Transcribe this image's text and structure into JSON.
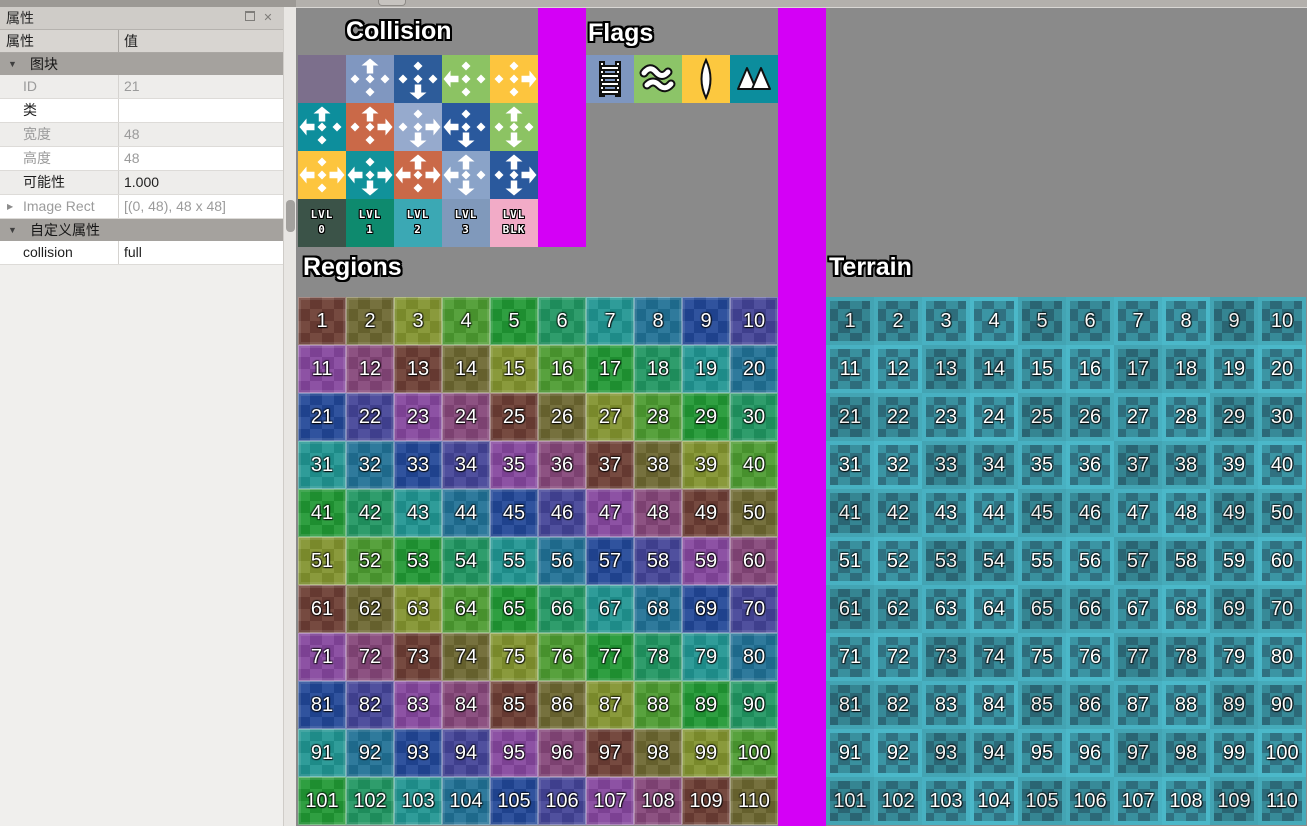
{
  "properties_panel": {
    "title": "属性",
    "window_buttons": {
      "float": "float",
      "close": "close"
    },
    "header": {
      "name": "属性",
      "value": "值"
    },
    "rows": [
      {
        "type": "group",
        "label": "图块"
      },
      {
        "type": "property",
        "label": "ID",
        "value": "21",
        "muted": true,
        "shade": true
      },
      {
        "type": "property",
        "label": "类",
        "value": "",
        "muted": false,
        "shade": false
      },
      {
        "type": "property",
        "label": "宽度",
        "value": "48",
        "muted": true,
        "shade": true
      },
      {
        "type": "property",
        "label": "高度",
        "value": "48",
        "muted": true,
        "shade": false
      },
      {
        "type": "property",
        "label": "可能性",
        "value": "1.000",
        "muted": false,
        "shade": true
      },
      {
        "type": "property",
        "label": "Image Rect",
        "value": "[(0, 48), 48 x 48]",
        "muted": true,
        "shade": false,
        "expander": true
      },
      {
        "type": "group",
        "label": "自定义属性"
      },
      {
        "type": "property",
        "label": "collision",
        "value": "full",
        "muted": false,
        "shade": false
      }
    ]
  },
  "tileset": {
    "background_color": "#8a8a8a",
    "transparent_color": "#d400f6",
    "sections": {
      "collision": {
        "label": "Collision",
        "tiles": [
          {
            "color": "#7c6f8c",
            "icons": null
          },
          {
            "color": "#8097c0",
            "icons": {
              "top": "arrow",
              "left": "dot",
              "center": "dot",
              "right": "dot",
              "bottom": "dot"
            }
          },
          {
            "color": "#2d5c9a",
            "icons": {
              "top": "dot",
              "left": "dot",
              "center": "dot",
              "right": "dot",
              "bottom": "arrow"
            }
          },
          {
            "color": "#8cc363",
            "icons": {
              "top": "dot",
              "left": "arrow",
              "center": "dot",
              "right": "dot",
              "bottom": "dot"
            }
          },
          {
            "color": "#fdc53e",
            "icons": {
              "top": "dot",
              "left": "dot",
              "center": "dot",
              "right": "arrow",
              "bottom": "dot"
            }
          },
          {
            "color": "#0d8e9c",
            "icons": {
              "top": "arrow",
              "left": "arrow",
              "center": "dot",
              "right": "dot",
              "bottom": "dot"
            }
          },
          {
            "color": "#ca6948",
            "icons": {
              "top": "arrow",
              "left": "dot",
              "center": "dot",
              "right": "arrow",
              "bottom": "dot"
            }
          },
          {
            "color": "#96aacd",
            "icons": {
              "top": "dot",
              "left": "dot",
              "center": "dot",
              "right": "arrow",
              "bottom": "arrow"
            }
          },
          {
            "color": "#2a599d",
            "icons": {
              "top": "dot",
              "left": "arrow",
              "center": "dot",
              "right": "dot",
              "bottom": "arrow"
            }
          },
          {
            "color": "#8cc363",
            "icons": {
              "top": "arrow",
              "left": "dot",
              "center": "dot",
              "right": "dot",
              "bottom": "arrow"
            }
          },
          {
            "color": "#fdc53e",
            "icons": {
              "top": "dot",
              "left": "arrow",
              "center": "dot",
              "right": "arrow",
              "bottom": "dot"
            }
          },
          {
            "color": "#11929a",
            "icons": {
              "top": "dot",
              "left": "arrow",
              "center": "dot",
              "right": "arrow",
              "bottom": "arrow"
            }
          },
          {
            "color": "#ca6948",
            "icons": {
              "top": "arrow",
              "left": "arrow",
              "center": "dot",
              "right": "arrow",
              "bottom": "dot"
            }
          },
          {
            "color": "#8aa3c8",
            "icons": {
              "top": "arrow",
              "left": "arrow",
              "center": "dot",
              "right": "dot",
              "bottom": "arrow"
            }
          },
          {
            "color": "#2a599d",
            "icons": {
              "top": "arrow",
              "left": "dot",
              "center": "dot",
              "right": "arrow",
              "bottom": "arrow"
            }
          }
        ],
        "level_tiles": [
          {
            "color": "#3b5348",
            "line1": "LVL",
            "line2": "0"
          },
          {
            "color": "#0e8a6e",
            "line1": "LVL",
            "line2": "1"
          },
          {
            "color": "#3ba8b4",
            "line1": "LVL",
            "line2": "2"
          },
          {
            "color": "#8099bb",
            "line1": "LVL",
            "line2": "3"
          },
          {
            "color": "#f2abc7",
            "line1": "LVL",
            "line2": "BLK"
          }
        ]
      },
      "flags": {
        "label": "Flags",
        "tiles": [
          {
            "color": "#7e96c0",
            "icon": "ladder"
          },
          {
            "color": "#8cc468",
            "icon": "water"
          },
          {
            "color": "#fcc83f",
            "icon": "gem"
          },
          {
            "color": "#0c8d9d",
            "icon": "mountains"
          }
        ]
      },
      "regions": {
        "label": "Regions",
        "numbers": [
          1,
          2,
          3,
          4,
          5,
          6,
          7,
          8,
          9,
          10,
          11,
          12,
          13,
          14,
          15,
          16,
          17,
          18,
          19,
          20,
          21,
          22,
          23,
          24,
          25,
          26,
          27,
          28,
          29,
          30,
          31,
          32,
          33,
          34,
          35,
          36,
          37,
          38,
          39,
          40,
          41,
          42,
          43,
          44,
          45,
          46,
          47,
          48,
          49,
          50,
          51,
          52,
          53,
          54,
          55,
          56,
          57,
          58,
          59,
          60,
          61,
          62,
          63,
          64,
          65,
          66,
          67,
          68,
          69,
          70,
          71,
          72,
          73,
          74,
          75,
          76,
          77,
          78,
          79,
          80,
          81,
          82,
          83,
          84,
          85,
          86,
          87,
          88,
          89,
          90,
          91,
          92,
          93,
          94,
          95,
          96,
          97,
          98,
          99,
          100,
          101,
          102,
          103,
          104,
          105,
          106,
          107,
          108,
          109,
          110
        ],
        "palette": [
          {
            "name": "brick",
            "light": "#764a40",
            "dark": "#653931"
          },
          {
            "name": "olive",
            "light": "#76713e",
            "dark": "#65602d"
          },
          {
            "name": "yellow-green",
            "light": "#8a9a3c",
            "dark": "#79892b"
          },
          {
            "name": "leaf-green",
            "light": "#58a23e",
            "dark": "#47912d"
          },
          {
            "name": "green",
            "light": "#2f9f41",
            "dark": "#1e8e30"
          },
          {
            "name": "sea-green",
            "light": "#2f9d6c",
            "dark": "#1e8c5b"
          },
          {
            "name": "teal",
            "light": "#2f9c99",
            "dark": "#1e8b88"
          },
          {
            "name": "steel-teal",
            "light": "#2f7a9c",
            "dark": "#1e698b"
          },
          {
            "name": "navy",
            "light": "#30539e",
            "dark": "#1f428d"
          },
          {
            "name": "indigo",
            "light": "#50509e",
            "dark": "#3f3f8d"
          },
          {
            "name": "purple",
            "light": "#8d52a4",
            "dark": "#7c4193"
          },
          {
            "name": "plum",
            "light": "#8d5282",
            "dark": "#7c4171"
          }
        ]
      },
      "terrain": {
        "label": "Terrain",
        "numbers": [
          1,
          2,
          3,
          4,
          5,
          6,
          7,
          8,
          9,
          10,
          11,
          12,
          13,
          14,
          15,
          16,
          17,
          18,
          19,
          20,
          21,
          22,
          23,
          24,
          25,
          26,
          27,
          28,
          29,
          30,
          31,
          32,
          33,
          34,
          35,
          36,
          37,
          38,
          39,
          40,
          41,
          42,
          43,
          44,
          45,
          46,
          47,
          48,
          49,
          50,
          51,
          52,
          53,
          54,
          55,
          56,
          57,
          58,
          59,
          60,
          61,
          62,
          63,
          64,
          65,
          66,
          67,
          68,
          69,
          70,
          71,
          72,
          73,
          74,
          75,
          76,
          77,
          78,
          79,
          80,
          81,
          82,
          83,
          84,
          85,
          86,
          87,
          88,
          89,
          90,
          91,
          92,
          93,
          94,
          95,
          96,
          97,
          98,
          99,
          100,
          101,
          102,
          103,
          104,
          105,
          106,
          107,
          108,
          109,
          110
        ],
        "frame": "#47aebe",
        "checker_light": "#388d9b",
        "checker_dark": "#2d6b7a"
      }
    }
  }
}
